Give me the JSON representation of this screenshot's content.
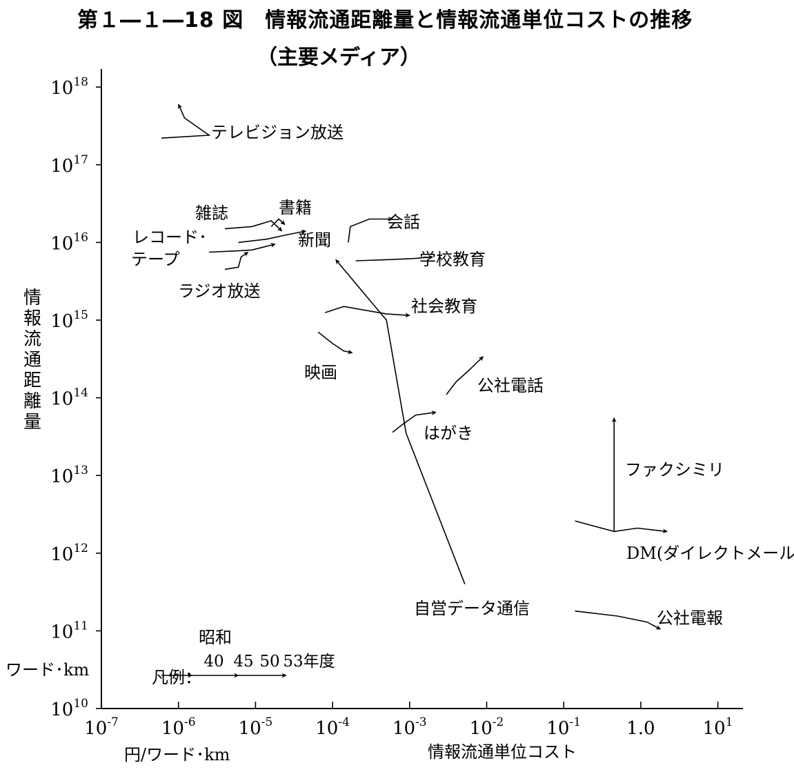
{
  "title": "第１―１―18 図　情報流通距離量と情報流通単位コストの推移",
  "subtitle": "（主要メディア）",
  "chart_data": {
    "type": "scatter",
    "xscale": "log",
    "yscale": "log",
    "xlim": [
      1e-07,
      20
    ],
    "ylim": [
      10000000000.0,
      1e+18
    ],
    "x_ticks": [
      {
        "base": "10",
        "exp": "-7",
        "value": 1e-07
      },
      {
        "base": "10",
        "exp": "-6",
        "value": 1e-06
      },
      {
        "base": "10",
        "exp": "-5",
        "value": 1e-05
      },
      {
        "base": "10",
        "exp": "-4",
        "value": 0.0001
      },
      {
        "base": "10",
        "exp": "-3",
        "value": 0.001
      },
      {
        "base": "10",
        "exp": "-2",
        "value": 0.01
      },
      {
        "base": "10",
        "exp": "-1",
        "value": 0.1
      },
      {
        "base": "1.0",
        "exp": "",
        "value": 1
      },
      {
        "base": "10",
        "exp": "1",
        "value": 10
      }
    ],
    "y_ticks": [
      {
        "base": "10",
        "exp": "18",
        "value": 1e+18
      },
      {
        "base": "10",
        "exp": "17",
        "value": 1e+17
      },
      {
        "base": "10",
        "exp": "16",
        "value": 1e+16
      },
      {
        "base": "10",
        "exp": "15",
        "value": 1000000000000000.0
      },
      {
        "base": "10",
        "exp": "14",
        "value": 100000000000000.0
      },
      {
        "base": "10",
        "exp": "13",
        "value": 10000000000000.0
      },
      {
        "base": "10",
        "exp": "12",
        "value": 1000000000000.0
      },
      {
        "base": "10",
        "exp": "11",
        "value": 100000000000.0
      },
      {
        "base": "10",
        "exp": "10",
        "value": 10000000000.0
      }
    ],
    "xlabel_unit": "円/ワード･km",
    "xlabel": "情報流通単位コスト",
    "ylabel": "情報流通距離量",
    "ylabel_unit": "ワード･km",
    "legend": {
      "title": "凡例：",
      "era": "昭和",
      "years": [
        "40",
        "45",
        "50",
        "53年度"
      ],
      "x": [
        6e-07,
        1.5e-06,
        6e-06,
        2.5e-05
      ]
    },
    "series": [
      {
        "name": "テレビジョン放送",
        "points": [
          [
            6e-07,
            2.2e+17
          ],
          [
            2.5e-06,
            2.4e+17
          ],
          [
            1.2e-06,
            4e+17
          ],
          [
            1e-06,
            6e+17
          ]
        ]
      },
      {
        "name": "雑誌",
        "points": [
          [
            4e-06,
            1.5e+16
          ],
          [
            9e-06,
            1.6e+16
          ],
          [
            1.6e-05,
            1.9e+16
          ],
          [
            2.2e-05,
            1.4e+16
          ]
        ]
      },
      {
        "name": "書籍",
        "points": [
          [
            1.6e-05,
            1.6e+16
          ],
          [
            2e-05,
            2e+16
          ],
          [
            2.4e-05,
            1.7e+16
          ]
        ]
      },
      {
        "name": "新聞",
        "points": [
          [
            6e-06,
            1e+16
          ],
          [
            1.4e-05,
            1.1e+16
          ],
          [
            2.5e-05,
            1.25e+16
          ],
          [
            4.5e-05,
            1.4e+16
          ]
        ]
      },
      {
        "name": "レコード･テープ",
        "points": [
          [
            2.5e-06,
            7500000000000000.0
          ],
          [
            6e-06,
            7800000000000000.0
          ],
          [
            9e-06,
            8000000000000000.0
          ],
          [
            1.8e-05,
            9500000000000000.0
          ]
        ]
      },
      {
        "name": "ラジオ放送",
        "points": [
          [
            4e-06,
            4500000000000000.0
          ],
          [
            6e-06,
            4800000000000000.0
          ],
          [
            6.5e-06,
            6500000000000000.0
          ],
          [
            8e-06,
            7500000000000000.0
          ]
        ]
      },
      {
        "name": "会話",
        "points": [
          [
            0.00016,
            1e+16
          ],
          [
            0.00017,
            1.6e+16
          ],
          [
            0.0003,
            2e+16
          ],
          [
            0.0006,
            2e+16
          ]
        ]
      },
      {
        "name": "学校教育",
        "points": [
          [
            0.0002,
            5800000000000000.0
          ],
          [
            0.0005,
            6000000000000000.0
          ],
          [
            0.0011,
            6200000000000000.0
          ],
          [
            0.002,
            6500000000000000.0
          ]
        ]
      },
      {
        "name": "社会教育",
        "points": [
          [
            8e-05,
            1250000000000000.0
          ],
          [
            0.00014,
            1500000000000000.0
          ],
          [
            0.0005,
            1200000000000000.0
          ],
          [
            0.001,
            1150000000000000.0
          ]
        ]
      },
      {
        "name": "映画",
        "points": [
          [
            6.5e-05,
            700000000000000.0
          ],
          [
            0.0001,
            500000000000000.0
          ],
          [
            0.00014,
            400000000000000.0
          ],
          [
            0.00018,
            380000000000000.0
          ]
        ]
      },
      {
        "name": "公社電話",
        "points": [
          [
            0.003,
            110000000000000.0
          ],
          [
            0.004,
            160000000000000.0
          ],
          [
            0.006,
            230000000000000.0
          ],
          [
            0.009,
            340000000000000.0
          ]
        ]
      },
      {
        "name": "はがき",
        "points": [
          [
            0.0006,
            36000000000000.0
          ],
          [
            0.0008,
            45000000000000.0
          ],
          [
            0.0012,
            60000000000000.0
          ],
          [
            0.0022,
            65000000000000.0
          ]
        ]
      },
      {
        "name": "自営データ通信",
        "points": [
          [
            0.0052,
            400000000000.0
          ],
          [
            0.0009,
            35000000000000.0
          ],
          [
            0.0005,
            1000000000000000.0
          ],
          [
            0.00011,
            6000000000000000.0
          ]
        ]
      },
      {
        "name": "ファクシミリ",
        "points": [
          [
            0.45,
            1900000000000.0
          ],
          [
            0.45,
            3000000000000.0
          ],
          [
            0.45,
            6000000000000.0
          ],
          [
            0.45,
            55000000000000.0
          ]
        ]
      },
      {
        "name": "DM(ダイレクトメール)",
        "points": [
          [
            0.14,
            2600000000000.0
          ],
          [
            0.45,
            1900000000000.0
          ],
          [
            0.9,
            2100000000000.0
          ],
          [
            2.2,
            1900000000000.0
          ]
        ]
      },
      {
        "name": "公社電報",
        "points": [
          [
            0.14,
            180000000000.0
          ],
          [
            0.5,
            155000000000.0
          ],
          [
            1.2,
            130000000000.0
          ],
          [
            1.8,
            105000000000.0
          ]
        ]
      }
    ]
  }
}
